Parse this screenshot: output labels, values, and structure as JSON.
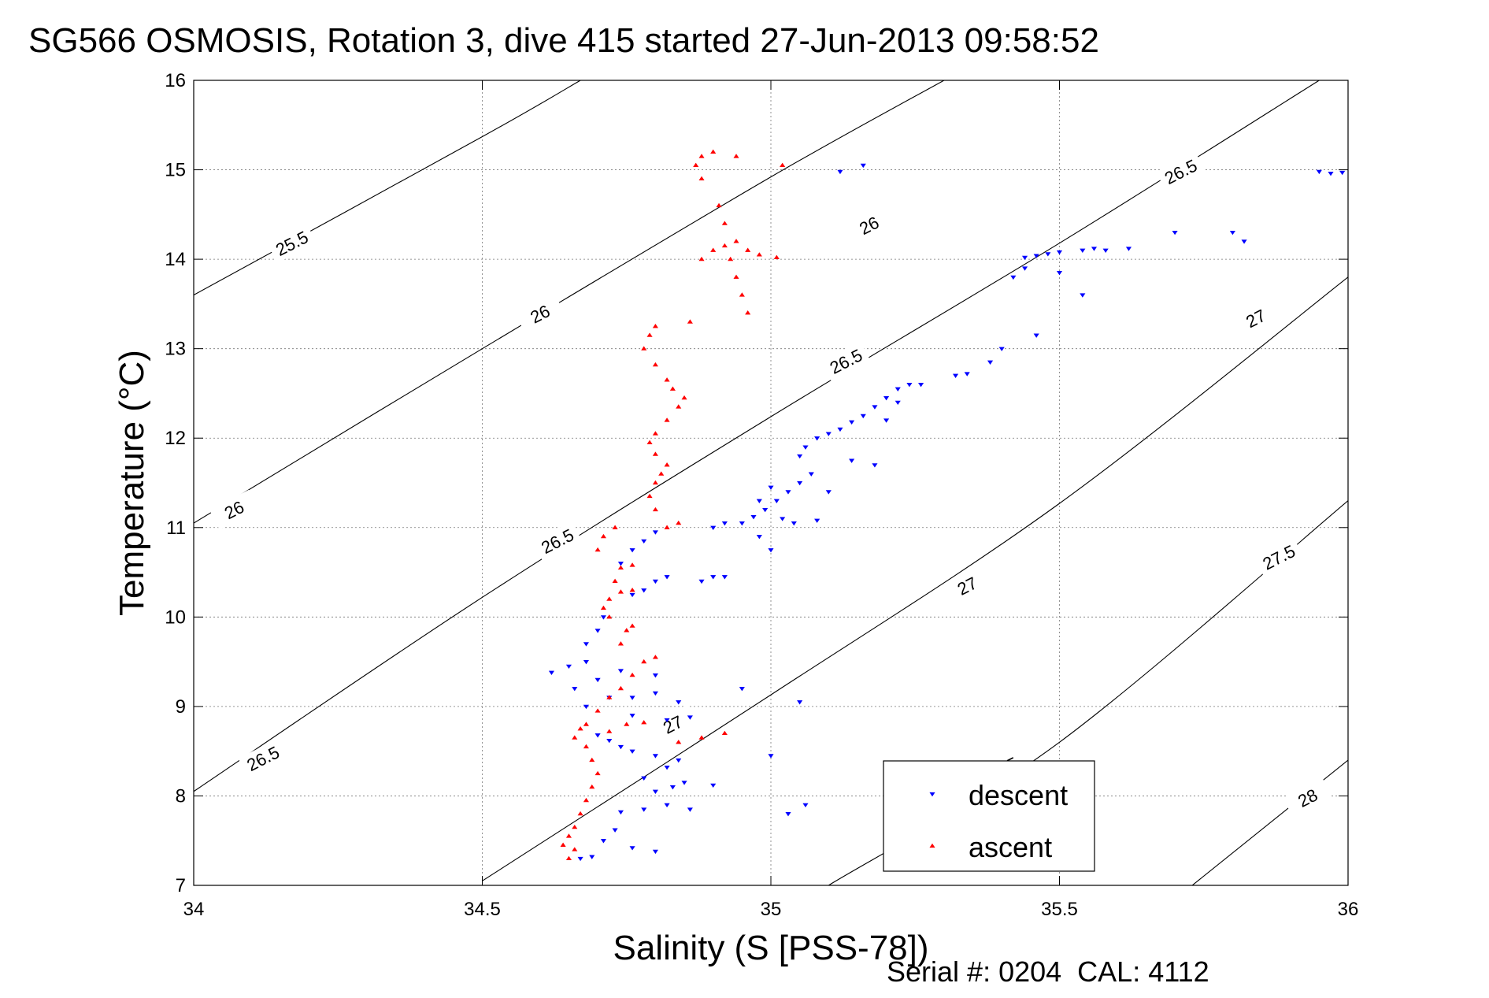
{
  "chart_data": {
    "type": "scatter",
    "title": "SG566 OSMOSIS, Rotation 3, dive 415 started 27-Jun-2013 09:58:52",
    "xlabel": "Salinity (S [PSS-78])",
    "ylabel": "Temperature (°C)",
    "footnote": "Serial #: 0204  CAL: 4112",
    "xlim": [
      34,
      36
    ],
    "ylim": [
      7,
      16
    ],
    "x_ticks": [
      34,
      34.5,
      35,
      35.5,
      36
    ],
    "x_tick_labels": [
      "34",
      "34.5",
      "35",
      "35.5",
      "36"
    ],
    "y_ticks": [
      7,
      8,
      9,
      10,
      11,
      12,
      13,
      14,
      15,
      16
    ],
    "y_tick_labels": [
      "7",
      "8",
      "9",
      "10",
      "11",
      "12",
      "13",
      "14",
      "15",
      "16"
    ],
    "grid": true,
    "legend_position": "bottom-right",
    "density_contours": [
      {
        "level": 25.5,
        "label": "25.5",
        "points": [
          [
            34.0,
            13.6
          ],
          [
            34.5,
            15.37
          ],
          [
            34.67,
            16.0
          ]
        ],
        "label_at": [
          34.17,
          14.18
        ]
      },
      {
        "level": 26,
        "label": "26",
        "points": [
          [
            34.0,
            11.05
          ],
          [
            34.5,
            13.0
          ],
          [
            35.0,
            14.92
          ],
          [
            35.3,
            16.0
          ]
        ],
        "label_at": [
          34.6,
          13.39
        ]
      },
      {
        "level": 26.5,
        "label": "26.5",
        "points": [
          [
            34.0,
            8.05
          ],
          [
            34.5,
            10.22
          ],
          [
            35.0,
            12.24
          ],
          [
            35.5,
            14.18
          ],
          [
            35.95,
            16.0
          ]
        ],
        "label_at": [
          35.13,
          12.86
        ]
      },
      {
        "level": 27,
        "label": "27",
        "points": [
          [
            34.5,
            7.05
          ],
          [
            35.0,
            9.13
          ],
          [
            35.5,
            11.27
          ],
          [
            36.0,
            13.8
          ]
        ],
        "label_at": [
          35.34,
          10.35
        ]
      },
      {
        "level": 27.5,
        "label": "27.5",
        "points": [
          [
            35.1,
            7.0
          ],
          [
            35.5,
            8.6
          ],
          [
            36.0,
            11.3
          ]
        ],
        "label_at": [
          35.88,
          10.67
        ]
      },
      {
        "level": 28,
        "label": "28",
        "points": [
          [
            35.73,
            7.0
          ],
          [
            36.0,
            8.4
          ]
        ],
        "label_at": [
          35.93,
          7.98
        ]
      }
    ],
    "density_label_extra": [
      {
        "label": "26",
        "at": [
          34.07,
          11.2
        ]
      },
      {
        "label": "26",
        "at": [
          35.17,
          14.38
        ]
      },
      {
        "label": "26.5",
        "at": [
          34.63,
          10.85
        ]
      },
      {
        "label": "26.5",
        "at": [
          34.12,
          8.42
        ]
      },
      {
        "label": "26.5",
        "at": [
          35.71,
          14.98
        ]
      },
      {
        "label": "27",
        "at": [
          34.83,
          8.8
        ]
      },
      {
        "label": "27",
        "at": [
          35.84,
          13.34
        ]
      },
      {
        "label": "27.5",
        "at": [
          35.4,
          8.3
        ]
      }
    ],
    "series": [
      {
        "name": "descent",
        "color": "#0000ff",
        "marker": "triangle-down",
        "points": [
          [
            34.67,
            7.3
          ],
          [
            34.69,
            7.32
          ],
          [
            34.71,
            7.5
          ],
          [
            34.73,
            7.62
          ],
          [
            34.76,
            7.42
          ],
          [
            34.8,
            7.38
          ],
          [
            34.74,
            7.82
          ],
          [
            34.78,
            7.85
          ],
          [
            34.82,
            7.9
          ],
          [
            34.86,
            7.85
          ],
          [
            34.8,
            8.05
          ],
          [
            34.83,
            8.1
          ],
          [
            34.78,
            8.2
          ],
          [
            34.82,
            8.32
          ],
          [
            34.85,
            8.15
          ],
          [
            34.9,
            8.12
          ],
          [
            34.76,
            8.5
          ],
          [
            34.8,
            8.45
          ],
          [
            34.84,
            8.4
          ],
          [
            34.74,
            8.55
          ],
          [
            34.72,
            8.62
          ],
          [
            34.7,
            8.68
          ],
          [
            34.76,
            8.9
          ],
          [
            34.82,
            8.85
          ],
          [
            34.86,
            8.88
          ],
          [
            34.68,
            9.0
          ],
          [
            34.72,
            9.1
          ],
          [
            34.76,
            9.1
          ],
          [
            34.8,
            9.15
          ],
          [
            34.84,
            9.05
          ],
          [
            34.66,
            9.2
          ],
          [
            34.7,
            9.3
          ],
          [
            34.62,
            9.38
          ],
          [
            34.65,
            9.45
          ],
          [
            34.68,
            9.5
          ],
          [
            34.74,
            9.4
          ],
          [
            34.8,
            9.35
          ],
          [
            34.68,
            9.7
          ],
          [
            34.7,
            9.85
          ],
          [
            34.71,
            10.0
          ],
          [
            34.78,
            10.3
          ],
          [
            34.8,
            10.4
          ],
          [
            34.76,
            10.25
          ],
          [
            34.82,
            10.45
          ],
          [
            34.88,
            10.4
          ],
          [
            34.9,
            10.45
          ],
          [
            34.92,
            10.45
          ],
          [
            34.74,
            10.6
          ],
          [
            34.76,
            10.75
          ],
          [
            34.78,
            10.85
          ],
          [
            34.8,
            10.95
          ],
          [
            34.9,
            11.0
          ],
          [
            34.92,
            11.05
          ],
          [
            34.95,
            11.05
          ],
          [
            34.97,
            11.12
          ],
          [
            34.99,
            11.2
          ],
          [
            35.01,
            11.3
          ],
          [
            35.03,
            11.4
          ],
          [
            35.05,
            11.5
          ],
          [
            35.07,
            11.6
          ],
          [
            35.0,
            11.45
          ],
          [
            34.98,
            11.3
          ],
          [
            35.02,
            11.1
          ],
          [
            35.04,
            11.05
          ],
          [
            35.08,
            11.08
          ],
          [
            34.98,
            10.9
          ],
          [
            35.0,
            10.75
          ],
          [
            35.1,
            11.4
          ],
          [
            35.14,
            11.75
          ],
          [
            35.18,
            11.7
          ],
          [
            35.05,
            11.8
          ],
          [
            35.06,
            11.9
          ],
          [
            35.08,
            12.0
          ],
          [
            35.1,
            12.05
          ],
          [
            35.12,
            12.1
          ],
          [
            35.14,
            12.18
          ],
          [
            35.16,
            12.25
          ],
          [
            35.18,
            12.35
          ],
          [
            35.2,
            12.45
          ],
          [
            35.22,
            12.55
          ],
          [
            35.24,
            12.6
          ],
          [
            35.26,
            12.6
          ],
          [
            35.22,
            12.4
          ],
          [
            35.2,
            12.2
          ],
          [
            35.32,
            12.7
          ],
          [
            35.34,
            12.72
          ],
          [
            35.38,
            12.85
          ],
          [
            35.4,
            13.0
          ],
          [
            35.46,
            13.15
          ],
          [
            35.54,
            13.6
          ],
          [
            35.5,
            13.85
          ],
          [
            35.42,
            13.8
          ],
          [
            35.44,
            14.02
          ],
          [
            35.46,
            14.04
          ],
          [
            35.48,
            14.06
          ],
          [
            35.5,
            14.08
          ],
          [
            35.54,
            14.1
          ],
          [
            35.56,
            14.12
          ],
          [
            35.58,
            14.1
          ],
          [
            35.62,
            14.12
          ],
          [
            35.44,
            13.9
          ],
          [
            35.7,
            14.3
          ],
          [
            35.8,
            14.3
          ],
          [
            35.82,
            14.2
          ],
          [
            35.12,
            14.98
          ],
          [
            35.16,
            15.05
          ],
          [
            35.95,
            14.98
          ],
          [
            35.97,
            14.96
          ],
          [
            35.99,
            14.97
          ],
          [
            36.02,
            14.95
          ],
          [
            35.05,
            9.05
          ],
          [
            35.0,
            8.45
          ],
          [
            35.03,
            7.8
          ],
          [
            35.06,
            7.9
          ],
          [
            34.95,
            9.2
          ]
        ]
      },
      {
        "name": "ascent",
        "color": "#ff0000",
        "marker": "triangle-up",
        "points": [
          [
            34.65,
            7.3
          ],
          [
            34.66,
            7.4
          ],
          [
            34.64,
            7.45
          ],
          [
            34.65,
            7.55
          ],
          [
            34.66,
            7.65
          ],
          [
            34.67,
            7.8
          ],
          [
            34.68,
            7.95
          ],
          [
            34.69,
            8.1
          ],
          [
            34.7,
            8.25
          ],
          [
            34.69,
            8.4
          ],
          [
            34.68,
            8.55
          ],
          [
            34.66,
            8.65
          ],
          [
            34.67,
            8.75
          ],
          [
            34.68,
            8.8
          ],
          [
            34.72,
            8.72
          ],
          [
            34.75,
            8.8
          ],
          [
            34.78,
            8.82
          ],
          [
            34.7,
            8.95
          ],
          [
            34.72,
            9.1
          ],
          [
            34.74,
            9.2
          ],
          [
            34.76,
            9.35
          ],
          [
            34.78,
            9.5
          ],
          [
            34.8,
            9.55
          ],
          [
            34.74,
            9.7
          ],
          [
            34.75,
            9.85
          ],
          [
            34.76,
            9.9
          ],
          [
            34.72,
            10.0
          ],
          [
            34.71,
            10.1
          ],
          [
            34.72,
            10.2
          ],
          [
            34.74,
            10.28
          ],
          [
            34.76,
            10.3
          ],
          [
            34.73,
            10.4
          ],
          [
            34.74,
            10.55
          ],
          [
            34.76,
            10.58
          ],
          [
            34.7,
            10.75
          ],
          [
            34.71,
            10.9
          ],
          [
            34.73,
            11.0
          ],
          [
            34.82,
            11.0
          ],
          [
            34.84,
            11.05
          ],
          [
            34.8,
            11.2
          ],
          [
            34.79,
            11.35
          ],
          [
            34.8,
            11.5
          ],
          [
            34.81,
            11.6
          ],
          [
            34.82,
            11.7
          ],
          [
            34.8,
            11.82
          ],
          [
            34.79,
            11.95
          ],
          [
            34.8,
            12.05
          ],
          [
            34.82,
            12.2
          ],
          [
            34.84,
            12.35
          ],
          [
            34.85,
            12.45
          ],
          [
            34.83,
            12.55
          ],
          [
            34.82,
            12.65
          ],
          [
            34.8,
            12.82
          ],
          [
            34.78,
            13.0
          ],
          [
            34.79,
            13.15
          ],
          [
            34.8,
            13.25
          ],
          [
            34.86,
            13.3
          ],
          [
            34.88,
            14.0
          ],
          [
            34.9,
            14.1
          ],
          [
            34.92,
            14.15
          ],
          [
            34.94,
            14.2
          ],
          [
            34.96,
            14.1
          ],
          [
            34.98,
            14.05
          ],
          [
            35.01,
            14.02
          ],
          [
            34.93,
            14.0
          ],
          [
            34.94,
            13.8
          ],
          [
            34.95,
            13.6
          ],
          [
            34.96,
            13.4
          ],
          [
            34.92,
            14.4
          ],
          [
            34.91,
            14.6
          ],
          [
            34.88,
            14.9
          ],
          [
            34.87,
            15.05
          ],
          [
            34.88,
            15.15
          ],
          [
            34.9,
            15.2
          ],
          [
            34.94,
            15.15
          ],
          [
            35.02,
            15.05
          ],
          [
            34.92,
            8.7
          ],
          [
            34.88,
            8.65
          ],
          [
            34.84,
            8.6
          ]
        ]
      }
    ]
  }
}
